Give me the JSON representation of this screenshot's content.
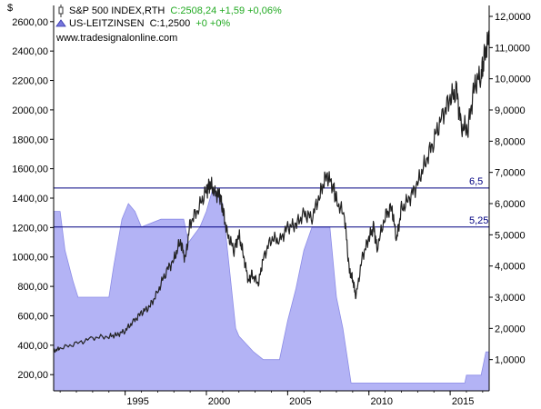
{
  "header": {
    "currency_symbol": "$",
    "watermark": "www.tradesignalonline.com"
  },
  "legend": [
    {
      "name": "S&P 500 INDEX,RTH",
      "value": "C:2508,24 +1,59 +0,06%",
      "icon": "candlestick-icon"
    },
    {
      "name": "US-LEITZINSEN",
      "value_black": "C:1,2500",
      "value": "+0 +0%",
      "icon": "rate-triangle-icon"
    }
  ],
  "colors": {
    "price_line": "#222222",
    "rate_fill": "#b3b3f5",
    "rate_edge": "#8c8ce6",
    "level_line": "#000080",
    "axis": "#000000",
    "legend_value": "#22aa22"
  },
  "chart_data": {
    "type": "line",
    "x_ticks": [
      1995,
      2000,
      2005,
      2010,
      2015
    ],
    "xlim": [
      1990.6,
      2017.4
    ],
    "y_left": {
      "ticks": [
        "200,00",
        "400,00",
        "600,00",
        "800,00",
        "1000,00",
        "1200,00",
        "1400,00",
        "1600,00",
        "1800,00",
        "2000,00",
        "2200,00",
        "2400,00",
        "2600,00"
      ],
      "values": [
        200,
        400,
        600,
        800,
        1000,
        1200,
        1400,
        1600,
        1800,
        2000,
        2200,
        2400,
        2600
      ],
      "lim": [
        90,
        2710
      ]
    },
    "y_right": {
      "ticks": [
        "1,0000",
        "2,0000",
        "3,0000",
        "4,0000",
        "5,0000",
        "6,0000",
        "7,0000",
        "8,0000",
        "9,0000",
        "10,0000",
        "11,0000",
        "12,0000"
      ],
      "values": [
        1,
        2,
        3,
        4,
        5,
        6,
        7,
        8,
        9,
        10,
        11,
        12
      ],
      "lim": [
        0,
        12.35
      ]
    },
    "levels": [
      {
        "value": 6.5,
        "label": "6,5"
      },
      {
        "value": 5.25,
        "label": "5,25"
      }
    ],
    "series": [
      {
        "name": "S&P 500 INDEX,RTH",
        "axis": "left",
        "points": [
          [
            1990.6,
            360
          ],
          [
            1991.0,
            380
          ],
          [
            1992.0,
            410
          ],
          [
            1993.0,
            450
          ],
          [
            1994.0,
            460
          ],
          [
            1994.5,
            470
          ],
          [
            1995.0,
            500
          ],
          [
            1995.5,
            560
          ],
          [
            1996.0,
            620
          ],
          [
            1996.5,
            660
          ],
          [
            1997.0,
            760
          ],
          [
            1997.5,
            900
          ],
          [
            1998.0,
            980
          ],
          [
            1998.4,
            1110
          ],
          [
            1998.7,
            980
          ],
          [
            1999.0,
            1230
          ],
          [
            1999.5,
            1330
          ],
          [
            2000.0,
            1450
          ],
          [
            2000.2,
            1500
          ],
          [
            2000.5,
            1440
          ],
          [
            2000.8,
            1420
          ],
          [
            2001.0,
            1330
          ],
          [
            2001.3,
            1150
          ],
          [
            2001.7,
            1050
          ],
          [
            2002.0,
            1150
          ],
          [
            2002.3,
            1000
          ],
          [
            2002.6,
            830
          ],
          [
            2002.8,
            880
          ],
          [
            2003.2,
            820
          ],
          [
            2003.5,
            990
          ],
          [
            2004.0,
            1130
          ],
          [
            2004.5,
            1110
          ],
          [
            2005.0,
            1200
          ],
          [
            2005.5,
            1220
          ],
          [
            2006.0,
            1290
          ],
          [
            2006.5,
            1270
          ],
          [
            2007.0,
            1430
          ],
          [
            2007.4,
            1560
          ],
          [
            2007.8,
            1480
          ],
          [
            2008.0,
            1380
          ],
          [
            2008.5,
            1280
          ],
          [
            2008.8,
            900
          ],
          [
            2009.0,
            850
          ],
          [
            2009.2,
            730
          ],
          [
            2009.6,
            1000
          ],
          [
            2010.0,
            1130
          ],
          [
            2010.3,
            1200
          ],
          [
            2010.5,
            1060
          ],
          [
            2011.0,
            1280
          ],
          [
            2011.4,
            1340
          ],
          [
            2011.7,
            1120
          ],
          [
            2012.0,
            1320
          ],
          [
            2012.5,
            1400
          ],
          [
            2013.0,
            1500
          ],
          [
            2013.5,
            1650
          ],
          [
            2014.0,
            1800
          ],
          [
            2014.5,
            1950
          ],
          [
            2015.0,
            2080
          ],
          [
            2015.4,
            2120
          ],
          [
            2015.7,
            1880
          ],
          [
            2016.1,
            1880
          ],
          [
            2016.5,
            2170
          ],
          [
            2016.9,
            2240
          ],
          [
            2017.1,
            2350
          ],
          [
            2017.4,
            2500
          ]
        ]
      },
      {
        "name": "US-LEITZINSEN",
        "axis": "right",
        "points": [
          [
            1990.6,
            5.75
          ],
          [
            1991.0,
            5.75
          ],
          [
            1991.3,
            4.5
          ],
          [
            1991.8,
            3.5
          ],
          [
            1992.1,
            3.0
          ],
          [
            1994.0,
            3.0
          ],
          [
            1994.3,
            4.0
          ],
          [
            1994.8,
            5.5
          ],
          [
            1995.2,
            6.0
          ],
          [
            1995.6,
            5.75
          ],
          [
            1996.0,
            5.25
          ],
          [
            1997.2,
            5.5
          ],
          [
            1998.6,
            5.5
          ],
          [
            1998.9,
            4.75
          ],
          [
            1999.6,
            5.25
          ],
          [
            2000.0,
            5.75
          ],
          [
            2000.4,
            6.5
          ],
          [
            2001.0,
            6.0
          ],
          [
            2001.3,
            4.5
          ],
          [
            2001.8,
            2.0
          ],
          [
            2002.0,
            1.75
          ],
          [
            2002.9,
            1.25
          ],
          [
            2003.5,
            1.0
          ],
          [
            2004.5,
            1.0
          ],
          [
            2005.0,
            2.25
          ],
          [
            2005.5,
            3.25
          ],
          [
            2006.0,
            4.5
          ],
          [
            2006.5,
            5.25
          ],
          [
            2007.6,
            5.25
          ],
          [
            2008.0,
            3.0
          ],
          [
            2008.4,
            2.0
          ],
          [
            2008.9,
            0.25
          ],
          [
            2015.9,
            0.25
          ],
          [
            2016.0,
            0.5
          ],
          [
            2016.9,
            0.5
          ],
          [
            2017.0,
            0.75
          ],
          [
            2017.2,
            1.25
          ],
          [
            2017.4,
            1.25
          ]
        ]
      }
    ]
  }
}
